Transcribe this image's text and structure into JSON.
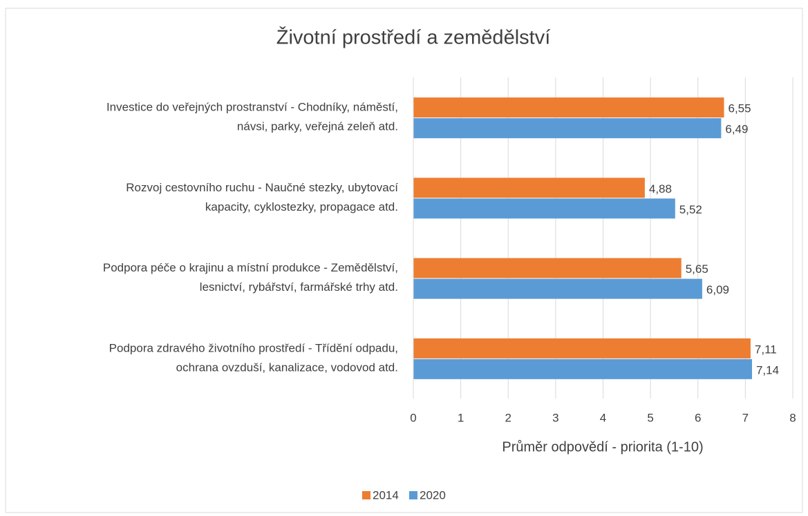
{
  "chart_data": {
    "type": "hbar",
    "title": "Životní prostředí a zemědělství",
    "xlabel": "Průměr odpovědí - priorita (1-10)",
    "categories": [
      [
        "Investice do veřejných prostranství - Chodníky, náměstí,",
        "návsi, parky, veřejná zeleň atd."
      ],
      [
        "Rozvoj cestovního ruchu - Naučné stezky, ubytovací",
        "kapacity, cyklostezky, propagace atd."
      ],
      [
        "Podpora péče o krajinu a místní produkce - Zemědělství,",
        "lesnictví, rybářství, farmářské trhy atd."
      ],
      [
        "Podpora zdravého životního prostředí - Třídění odpadu,",
        "ochrana ovzduší, kanalizace, vodovod atd."
      ]
    ],
    "series": [
      {
        "name": "2014",
        "color": "#ed7d31",
        "values": [
          6.55,
          4.88,
          5.65,
          7.11
        ],
        "value_labels": [
          "6,55",
          "4,88",
          "5,65",
          "7,11"
        ]
      },
      {
        "name": "2020",
        "color": "#5b9bd5",
        "values": [
          6.49,
          5.52,
          6.09,
          7.14
        ],
        "value_labels": [
          "6,49",
          "5,52",
          "6,09",
          "7,14"
        ]
      }
    ],
    "xlim": [
      0,
      8
    ],
    "xticks": [
      0,
      1,
      2,
      3,
      4,
      5,
      6,
      7,
      8
    ],
    "grid": true,
    "legend": "bottom"
  }
}
